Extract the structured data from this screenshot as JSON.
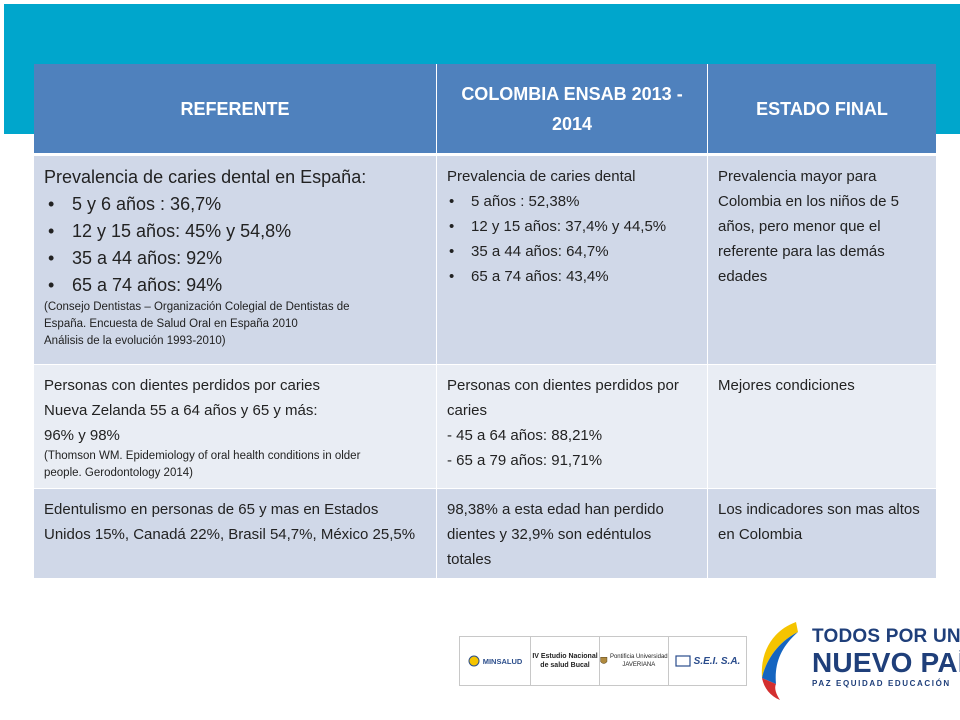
{
  "table": {
    "headers": [
      "REFERENTE",
      "COLOMBIA ENSAB 2013 - 2014",
      "ESTADO FINAL"
    ],
    "row1": {
      "ref_title": "Prevalencia de caries dental en España:",
      "ref_items": [
        "5 y 6 años : 36,7%",
        "12 y 15 años: 45% y 54,8%",
        "35 a 44 años: 92%",
        "65 a 74 años: 94%"
      ],
      "ref_note": [
        "(Consejo Dentistas – Organización Colegial de Dentistas de",
        "España. Encuesta de Salud Oral en España 2010",
        "Análisis de la evolución 1993-2010)"
      ],
      "col_title": "Prevalencia de caries dental",
      "col_items": [
        "5  años : 52,38%",
        "12 y 15 años: 37,4% y 44,5%",
        "35 a 44 años: 64,7%",
        "65 a 74 años: 43,4%"
      ],
      "final": "Prevalencia mayor para Colombia en los niños de 5 años, pero menor que el referente  para las demás edades"
    },
    "row2": {
      "ref_lines": [
        "Personas con dientes perdidos por caries",
        "Nueva Zelanda 55 a 64 años y 65 y más:",
        "96% y 98%"
      ],
      "ref_note": [
        "(Thomson WM. Epidemiology of oral health conditions in older",
        "people. Gerodontology 2014)"
      ],
      "col_lines": [
        "Personas con dientes perdidos por caries",
        "- 45 a 64 años: 88,21%",
        "- 65 a 79 años: 91,71%"
      ],
      "final": "Mejores condiciones"
    },
    "row3": {
      "ref": "Edentulismo  en personas de 65 y mas en Estados Unidos 15%, Canadá 22%, Brasil 54,7%, México 25,5%",
      "col": "98,38% a esta edad han perdido dientes y 32,9% son edéntulos totales",
      "final": "Los indicadores son mas altos en Colombia"
    }
  },
  "logos": {
    "minsalud": "MINSALUD",
    "ensab": "IV Estudio Nacional de salud Bucal",
    "javeriana": "Pontificia Universidad JAVERIANA",
    "sei": "S.E.I. S.A."
  },
  "brand": {
    "line1": "TODOS POR UN",
    "line2": "NUEVO PAÍS",
    "line3": "PAZ  EQUIDAD  EDUCACIÓN",
    "colors": {
      "navy": "#1f3f7a",
      "yellow": "#f5c400",
      "blue": "#1565c0",
      "red": "#d32f2f"
    }
  },
  "colors": {
    "banner": "#00a6cc",
    "header": "#4f81bd",
    "row_dark": "#d0d8e8",
    "row_light": "#e9edf4"
  }
}
